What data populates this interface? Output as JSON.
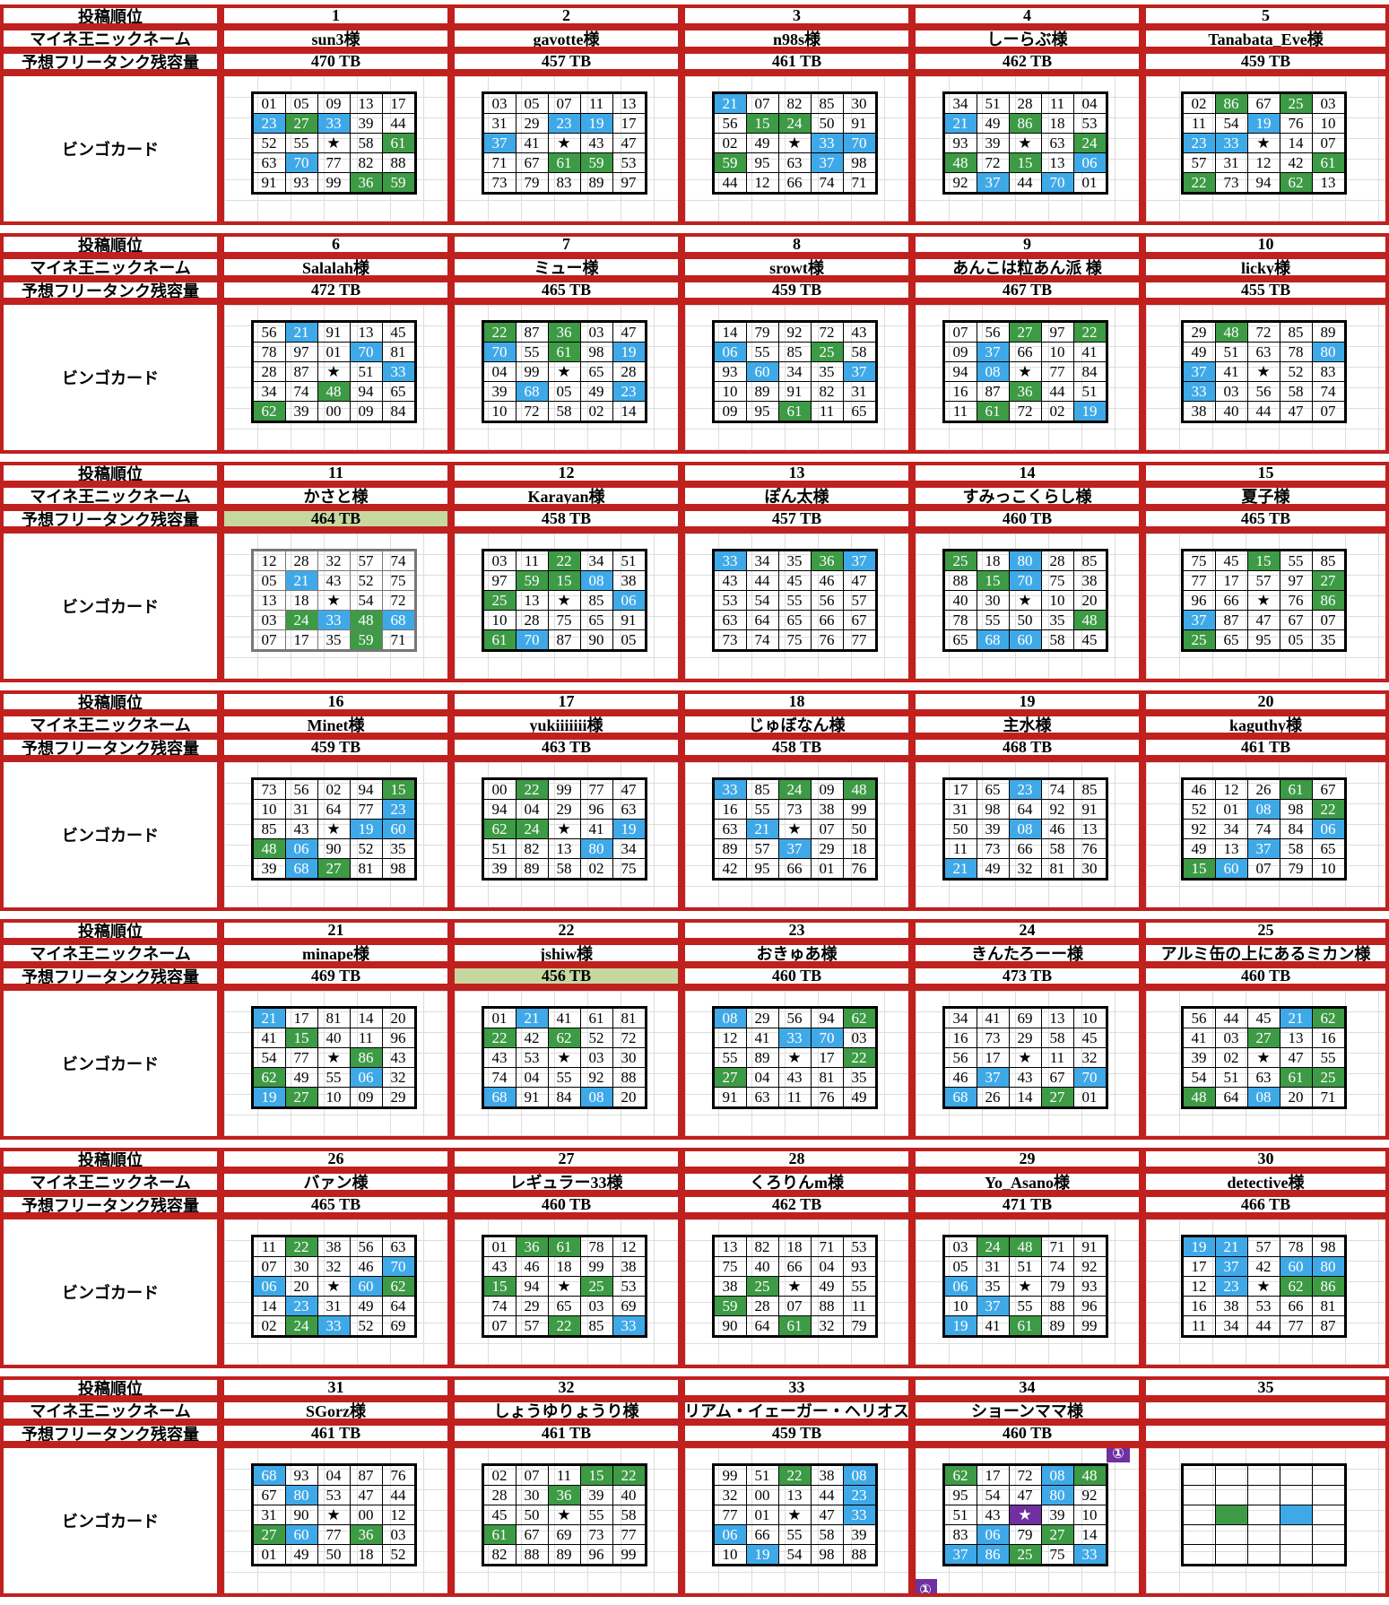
{
  "labels": {
    "order": "投稿順位",
    "nickname": "マイネ王ニックネーム",
    "capacity": "予想フリータンク残容量",
    "card": "ビンゴカード"
  },
  "colors": {
    "border": "#c0201e",
    "green": "#3d9a45",
    "blue": "#3fa9e8",
    "purple": "#7030a0",
    "highlight": "#c7d7a0"
  },
  "cell_codes": {
    "g": "green marked",
    "b": "blue marked",
    "p": "purple marked"
  },
  "entries": [
    {
      "rank": "1",
      "name": "sun3様",
      "tb": "470 TB",
      "card": [
        "01 05 09 13 17",
        "23b 27g 33b 39 44",
        "52 55 ★ 58 61g",
        "63 70b 77 82 88",
        "91 93 99 36g 59g"
      ]
    },
    {
      "rank": "2",
      "name": "gavotte様",
      "tb": "457 TB",
      "card": [
        "03 05 07 11 13",
        "31 29 23b 19b 17",
        "37b 41 ★ 43 47",
        "71 67 61g 59g 53",
        "73 79 83 89 97"
      ]
    },
    {
      "rank": "3",
      "name": "n98s様",
      "tb": "461 TB",
      "card": [
        "21b 07 82 85 30",
        "56 15g 24g 50 91",
        "02 49 ★ 33b 70b",
        "59g 95 63 37b 98",
        "44 12 66 74 71"
      ]
    },
    {
      "rank": "4",
      "name": "しーらぶ様",
      "tb": "462 TB",
      "card": [
        "34 51 28 11 04",
        "21b 49 86g 18 53",
        "93 39 ★ 63 24g",
        "48g 72 15g 13 06b",
        "92 37b 44 70b 01"
      ]
    },
    {
      "rank": "5",
      "name": "Tanabata_Eve様",
      "tb": "459 TB",
      "card": [
        "02 86g 67 25g 03",
        "11 54 19b 76 10",
        "23b 33b ★ 14 07",
        "57 31 12 42 61g",
        "22g 73 94 62g 13"
      ]
    },
    {
      "rank": "6",
      "name": "Salalah様",
      "tb": "472 TB",
      "card": [
        "56 21b 91 13 45",
        "78 97 01 70b 81",
        "28 87 ★ 51 33b",
        "34 74 48g 94 65",
        "62g 39 00 09 84"
      ]
    },
    {
      "rank": "7",
      "name": "ミュー様",
      "tb": "465 TB",
      "card": [
        "22g 87 36g 03 47",
        "70b 55 61g 98 19b",
        "04 99 ★ 65 28",
        "39 68b 05 49 23b",
        "10 72 58 02 14"
      ]
    },
    {
      "rank": "8",
      "name": "srowt様",
      "tb": "459 TB",
      "card": [
        "14 79 92 72 43",
        "06b 55 85 25g 58",
        "93 60b 34 35 37b",
        "10 89 91 82 31",
        "09 95 61g 11 65"
      ]
    },
    {
      "rank": "9",
      "name": "あんこは粒あん派 様",
      "tb": "467 TB",
      "card": [
        "07 56 27g 97 22g",
        "09 37b 66 10 41",
        "94 08b ★ 77 84",
        "16 87 36g 44 51",
        "11 61g 72 02 19b"
      ]
    },
    {
      "rank": "10",
      "name": "licky様",
      "tb": "455 TB",
      "card": [
        "29 48g 72 85 89",
        "49 51 63 78 80b",
        "37b 41 ★ 52 83",
        "33b 03 56 58 74",
        "38 40 44 47 07"
      ]
    },
    {
      "rank": "11",
      "name": "かさと様",
      "tb": "464 TB",
      "hl": true,
      "gray": true,
      "card": [
        "12 28 32 57 74",
        "05 21b 43 52 75",
        "13 18 ★ 54 72",
        "03 24g 33b 48g 68b",
        "07 17 35 59g 71"
      ]
    },
    {
      "rank": "12",
      "name": "Karayan様",
      "tb": "458 TB",
      "card": [
        "03 11 22g 34 51",
        "97 59g 15g 08b 38",
        "25g 13 ★ 85 06b",
        "10 28 75 65 91",
        "61g 70b 87 90 05"
      ]
    },
    {
      "rank": "13",
      "name": "ぽん太様",
      "tb": "457 TB",
      "card": [
        "33b 34 35 36g 37b",
        "43 44 45 46 47",
        "53 54 55 56 57",
        "63 64 65 66 67",
        "73 74 75 76 77"
      ]
    },
    {
      "rank": "14",
      "name": "すみっこくらし様",
      "tb": "460 TB",
      "card": [
        "25g 18 80b 28 85",
        "88 15g 70b 75 38",
        "40 30 ★ 10 20",
        "78 55 50 35 48g",
        "65 68b 60b 58 45"
      ]
    },
    {
      "rank": "15",
      "name": "夏子様",
      "tb": "465 TB",
      "card": [
        "75 45 15g 55 85",
        "77 17 57 97 27g",
        "96 66 ★ 76 86g",
        "37b 87 47 67 07",
        "25g 65 95 05 35"
      ]
    },
    {
      "rank": "16",
      "name": "Minet様",
      "tb": "459 TB",
      "card": [
        "73 56 02 94 15g",
        "10 31 64 77 23b",
        "85 43 ★ 19b 60b",
        "48g 06b 90 52 35",
        "39 68b 27g 81 98"
      ]
    },
    {
      "rank": "17",
      "name": "yukiiiiiii様",
      "tb": "463 TB",
      "card": [
        "00 22g 99 77 47",
        "94 04 29 96 63",
        "62g 24g ★ 41 19b",
        "51 82 13 80b 34",
        "39 89 58 02 75"
      ]
    },
    {
      "rank": "18",
      "name": "じゅぼなん様",
      "tb": "458 TB",
      "card": [
        "33b 85 24g 09 48g",
        "16 55 73 38 99",
        "63 21b ★ 07 50",
        "89 57 37b 29 18",
        "42 95 66 01 76"
      ]
    },
    {
      "rank": "19",
      "name": "主水様",
      "tb": "468 TB",
      "card": [
        "17 65 23b 74 85",
        "31 98 64 92 91",
        "50 39 08b 46 13",
        "11 73 66 58 76",
        "21b 49 32 81 30"
      ]
    },
    {
      "rank": "20",
      "name": "kaguthy様",
      "tb": "461 TB",
      "card": [
        "46 12 26 61g 67",
        "52 01 08b 98 22g",
        "92 34 74 84 06b",
        "49 13 37b 58 65",
        "15g 60b 07 79 10"
      ]
    },
    {
      "rank": "21",
      "name": "minape様",
      "tb": "469 TB",
      "card": [
        "21b 17 81 14 20",
        "41 15g 40 11 96",
        "54 77 ★ 86g 43",
        "62g 49 55 06b 32",
        "19b 27g 10 09 29"
      ]
    },
    {
      "rank": "22",
      "name": "jshiw様",
      "tb": "456 TB",
      "hl": true,
      "card": [
        "01 21b 41 61 81",
        "22g 42 62g 52 72",
        "43 53 ★ 03 30",
        "74 04 55 92 88",
        "68b 91 84 08b 20"
      ]
    },
    {
      "rank": "23",
      "name": "おきゅあ様",
      "tb": "460 TB",
      "card": [
        "08b 29 56 94 62g",
        "12 41 33b 70b 03",
        "55 89 ★ 17 22g",
        "27g 04 43 81 35",
        "91 63 11 76 49"
      ]
    },
    {
      "rank": "24",
      "name": "きんたろーー様",
      "tb": "473 TB",
      "card": [
        "34 41 69 13 10",
        "16 73 29 58 45",
        "56 17 ★ 11 32",
        "46 37b 43 67 70b",
        "68b 26 14 27g 01"
      ]
    },
    {
      "rank": "25",
      "name": "アルミ缶の上にあるミカン様",
      "tb": "460 TB",
      "card": [
        "56 44 45 21b 62g",
        "41 03 27g 13 16",
        "39 02 ★ 47 55",
        "54 51 63 61g 25g",
        "48g 64 08b 20 71"
      ]
    },
    {
      "rank": "26",
      "name": "バァン様",
      "tb": "465 TB",
      "card": [
        "11 22g 38 56 63",
        "07 30 32 46 70b",
        "06b 20 ★ 60b 62g",
        "14 23b 31 49 64",
        "02 24g 33b 52 69"
      ]
    },
    {
      "rank": "27",
      "name": "レギュラー33様",
      "tb": "460 TB",
      "card": [
        "01 36g 61g 78 12",
        "43 46 18 99 38",
        "15g 94 ★ 25g 53",
        "74 29 65 03 69",
        "07 57 22g 85 33b"
      ]
    },
    {
      "rank": "28",
      "name": "くろりんm様",
      "tb": "462 TB",
      "card": [
        "13 82 18 71 53",
        "75 40 66 04 93",
        "38 25g ★ 49 55",
        "59g 28 07 88 11",
        "90 64 61g 32 79"
      ]
    },
    {
      "rank": "29",
      "name": "Yo_Asano様",
      "tb": "471 TB",
      "card": [
        "03 24g 48g 71 91",
        "05 31 51 74 92",
        "06b 35 ★ 79 93",
        "10 37b 55 88 96",
        "19b 41 61g 89 99"
      ]
    },
    {
      "rank": "30",
      "name": "detective様",
      "tb": "466 TB",
      "card": [
        "19b 21b 57 78 98",
        "17 37b 42 60b 80b",
        "12 23b ★ 62g 86g",
        "16 38 53 66 81",
        "11 34 44 77 87"
      ]
    },
    {
      "rank": "31",
      "name": "SGorz様",
      "tb": "461 TB",
      "card": [
        "68b 93 04 87 76",
        "67 80b 53 47 44",
        "31 90 ★ 00 12",
        "27g 60b 77 36g 03",
        "01 49 50 18 52"
      ]
    },
    {
      "rank": "32",
      "name": "しょうゆりょうり様",
      "tb": "461 TB",
      "card": [
        "02 07 11 15g 22g",
        "28 30 36g 39 40",
        "45 50 ★ 55 58",
        "61g 67 69 73 77",
        "82 88 89 96 99"
      ]
    },
    {
      "rank": "33",
      "name": "リアム・イェーガー・ヘリオス",
      "tb": "459 TB",
      "card": [
        "99 51 22g 38 08b",
        "32 00 13 44 23b",
        "77 01 ★ 47 33b",
        "06b 66 55 58 39",
        "10 19b 54 98 88"
      ]
    },
    {
      "rank": "34",
      "name": "ショーンママ様",
      "tb": "460 TB",
      "badge": "①",
      "card": [
        "62g 17 72 08b 48g",
        "95 54 47 80b 92",
        "51 43 ★p 39 10",
        "83 06b 79 27g 14",
        "37b 86b 25g 75 33b"
      ]
    },
    {
      "rank": "35",
      "name": "",
      "tb": "",
      "card": [
        "_ _ _ _ _",
        "_ _ _ _ _",
        "_ _g _ _b _",
        "_ _ _ _ _",
        "_ _ _ _ _"
      ]
    }
  ]
}
